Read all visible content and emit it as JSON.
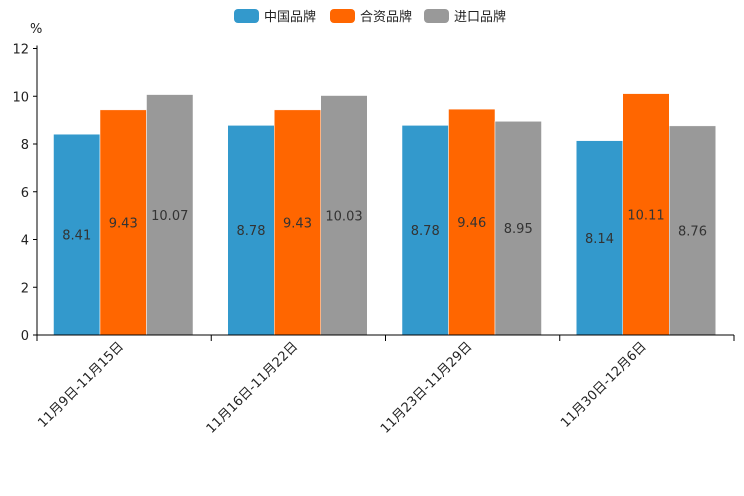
{
  "chart_data": {
    "type": "bar",
    "title": "",
    "xlabel": "",
    "ylabel": "",
    "unit": "%",
    "ylim": [
      0,
      12
    ],
    "yticks": [
      0,
      2,
      4,
      6,
      8,
      10,
      12
    ],
    "grid": false,
    "legend_position": "top-center",
    "categories": [
      "11月9日-11月15日",
      "11月16日-11月22日",
      "11月23日-11月29日",
      "11月30日-12月6日"
    ],
    "series": [
      {
        "name": "中国品牌",
        "color": "#3399cc",
        "values": [
          8.41,
          8.78,
          8.78,
          8.14
        ]
      },
      {
        "name": "合资品牌",
        "color": "#ff6600",
        "values": [
          9.43,
          9.43,
          9.46,
          10.11
        ]
      },
      {
        "name": "进口品牌",
        "color": "#999999",
        "values": [
          10.07,
          10.03,
          8.95,
          8.76
        ]
      }
    ]
  }
}
